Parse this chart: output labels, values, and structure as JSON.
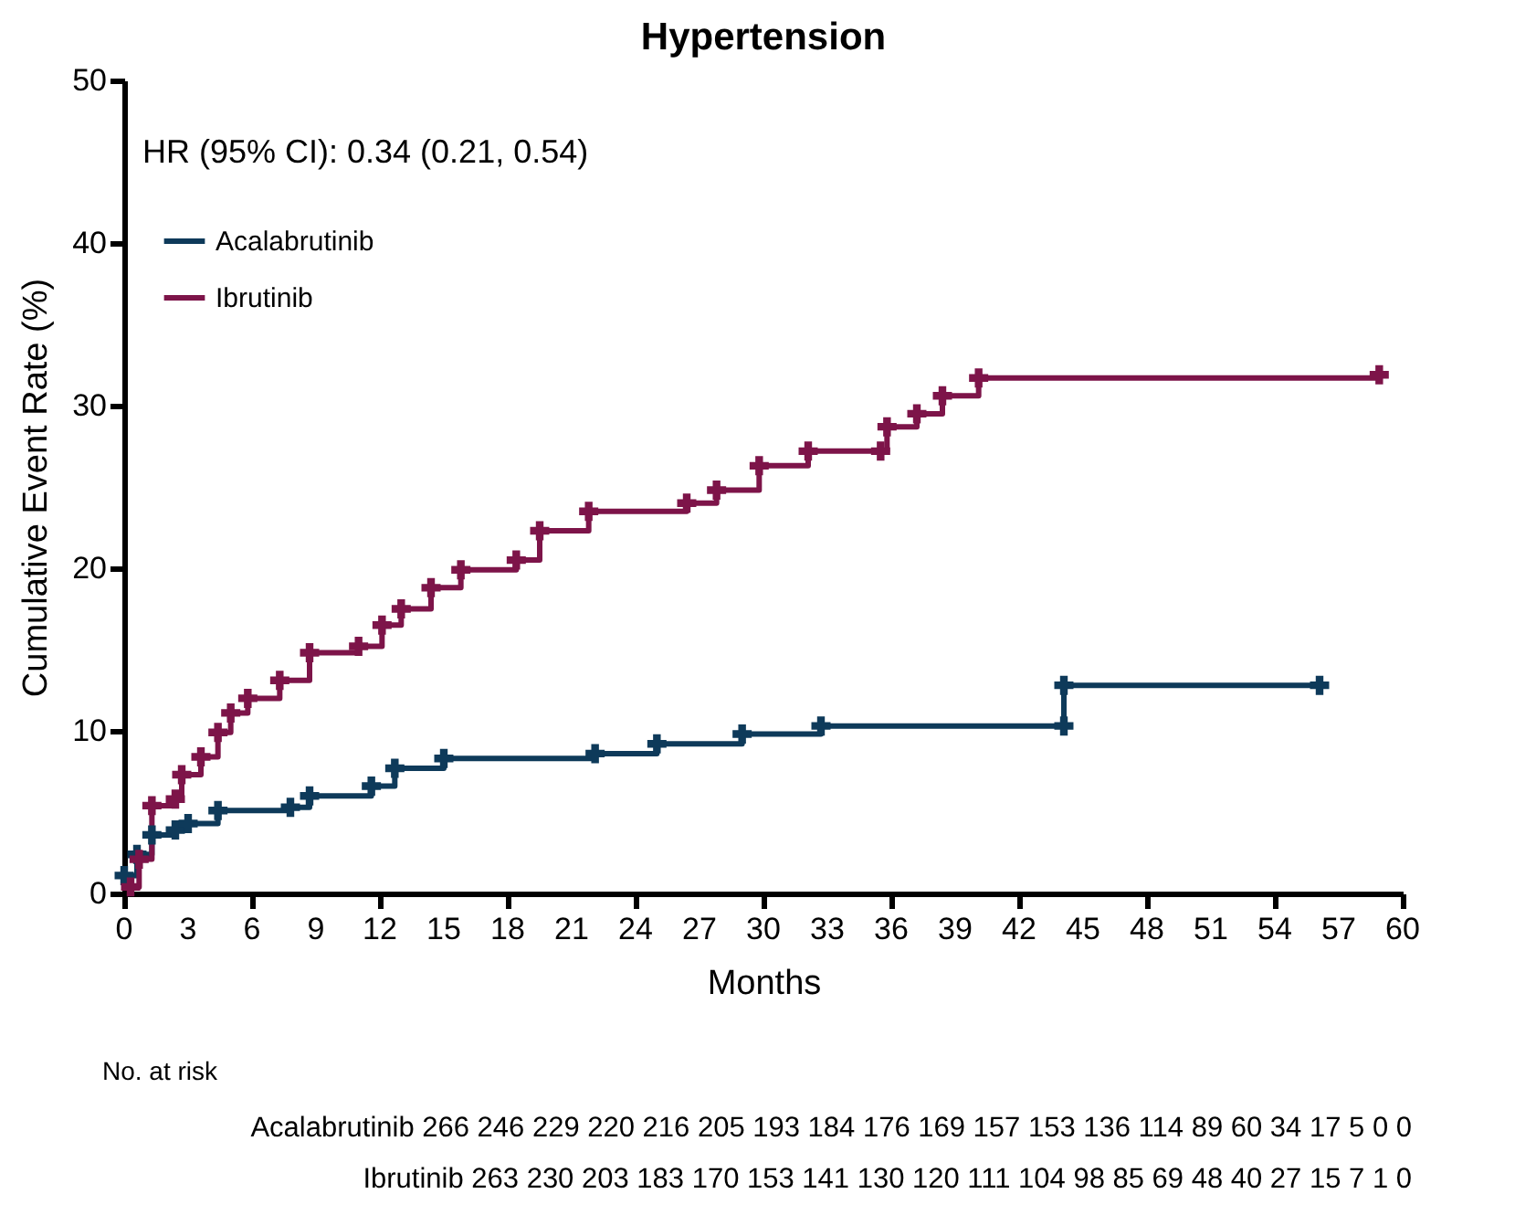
{
  "chart_data": {
    "type": "step",
    "title": "Hypertension",
    "xlabel": "Months",
    "ylabel": "Cumulative Event Rate (%)",
    "xlim": [
      0,
      60
    ],
    "xticks": [
      0,
      3,
      6,
      9,
      12,
      15,
      18,
      21,
      24,
      27,
      30,
      33,
      36,
      39,
      42,
      45,
      48,
      51,
      54,
      57,
      60
    ],
    "ylim": [
      0,
      50
    ],
    "yticks": [
      0,
      10,
      20,
      30,
      40,
      50
    ],
    "grid": false,
    "legend": "top left",
    "marker": "cross",
    "line_style": "solid",
    "series": [
      {
        "name": "Acalabrutinib",
        "color": "#0e3a5a",
        "x": [
          0.0,
          0.6,
          1.3,
          2.4,
          3.0,
          4.4,
          7.8,
          8.7,
          11.6,
          12.7,
          15.0,
          22.1,
          25.0,
          29.0,
          32.7,
          44.1,
          44.1,
          56.1
        ],
        "values": [
          1.1,
          2.4,
          3.6,
          3.9,
          4.3,
          5.1,
          5.3,
          6.0,
          6.6,
          7.7,
          8.3,
          8.6,
          9.2,
          9.8,
          10.3,
          10.3,
          12.8,
          12.8
        ]
      },
      {
        "name": "Ibrutinib",
        "color": "#7d1449",
        "x": [
          0.3,
          0.7,
          1.3,
          2.4,
          2.7,
          3.6,
          4.4,
          5.0,
          5.8,
          7.3,
          8.7,
          11.0,
          12.1,
          13.0,
          14.4,
          15.8,
          18.4,
          19.5,
          21.8,
          26.4,
          27.8,
          29.8,
          32.1,
          35.5,
          35.8,
          37.2,
          38.4,
          40.1,
          58.9
        ],
        "values": [
          0.4,
          2.1,
          5.4,
          5.8,
          7.3,
          8.4,
          9.9,
          11.1,
          12.0,
          13.1,
          14.8,
          15.2,
          16.5,
          17.5,
          18.8,
          19.9,
          20.5,
          22.3,
          23.5,
          24.0,
          24.8,
          26.3,
          27.2,
          27.2,
          28.7,
          29.5,
          30.6,
          31.7,
          31.9
        ]
      }
    ],
    "annotations": [
      "HR (95% CI): 0.34 (0.21, 0.54)",
      "No. at risk",
      "Acalabrutinib 266 246 229 220 216 205 193 184 176 169 157 153 136 114 89 60 34 17 5 0 0",
      "Ibrutinib 263 230 203 183 170 153 141 130 120 111 104 98 85 69 48 40 27 15 7 1 0"
    ]
  }
}
